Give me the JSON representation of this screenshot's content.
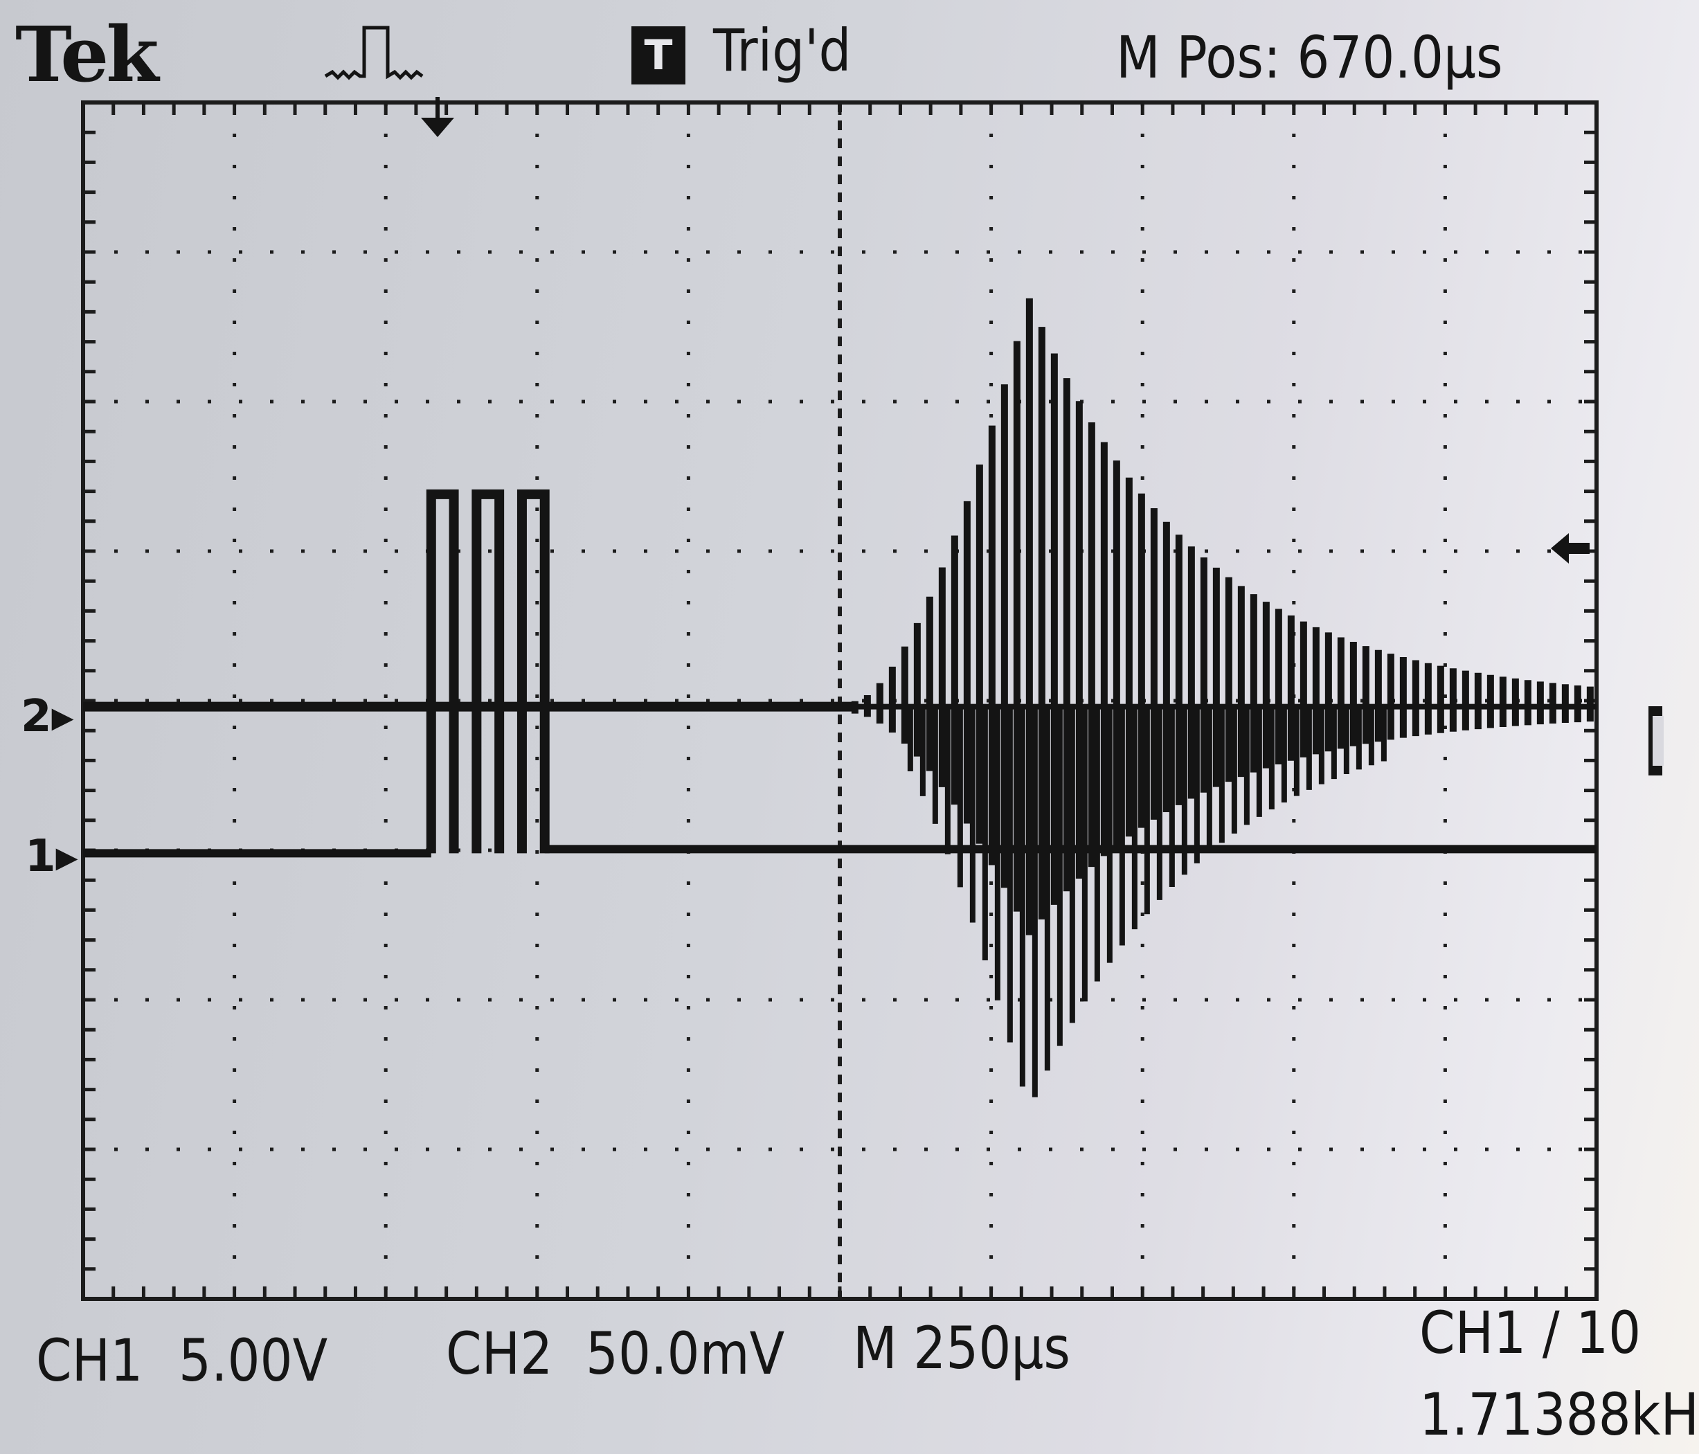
{
  "header": {
    "brand": "Tek",
    "acquire_icon": "pulse-acquire-icon",
    "trigger_badge": "T",
    "trigger_status": "Trig'd",
    "main_position": "M Pos: 670.0µs"
  },
  "footer": {
    "ch1_label": "CH1",
    "ch1_scale": "5.00V",
    "ch2_label": "CH2",
    "ch2_scale": "50.0mV",
    "timebase": "M 250µs",
    "trigger_source": "CH1 ∕ 10",
    "frequency": "1.71388kH"
  },
  "markers": {
    "ch1": "1",
    "ch2": "2"
  },
  "display": {
    "trace_color": "#141414",
    "grid_color": "#1c1c1c"
  },
  "signals": {
    "ch1_pulse_burst": {
      "start_div": 2.3,
      "end_div": 3.05,
      "pulses": 3,
      "amplitude_div": 2.4
    },
    "ch2_echo_burst": {
      "start_div": 5.1,
      "peak_div": 6.25,
      "end_div": 10.0,
      "peak_amplitude_div": 2.7
    }
  }
}
